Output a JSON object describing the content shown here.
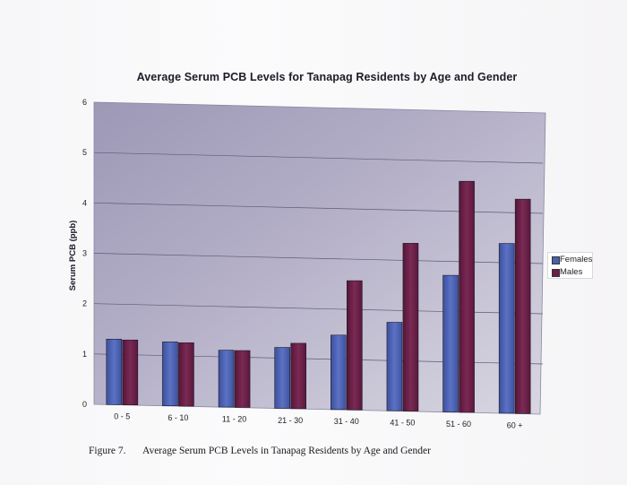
{
  "chart_data": {
    "type": "bar",
    "title": "Average Serum PCB Levels for Tanapag Residents by Age and Gender",
    "xlabel": "",
    "ylabel": "Serum PCB (ppb)",
    "ylim": [
      0,
      6
    ],
    "yticks": [
      "0",
      "1",
      "2",
      "3",
      "4",
      "5",
      "6"
    ],
    "grid": true,
    "legend_position": "right",
    "categories": [
      "0 - 5",
      "6 - 10",
      "11 - 20",
      "21 - 30",
      "31 - 40",
      "41 - 50",
      "51 - 60",
      "60 +"
    ],
    "series": [
      {
        "name": "Females",
        "color": "#4a5fae",
        "values": [
          1.3,
          1.27,
          1.13,
          1.21,
          1.48,
          1.76,
          2.72,
          3.38
        ]
      },
      {
        "name": "Males",
        "color": "#6b1f47",
        "values": [
          1.29,
          1.26,
          1.13,
          1.3,
          2.57,
          3.34,
          4.6,
          4.27
        ]
      }
    ]
  },
  "caption": {
    "figure_label": "Figure 7.",
    "text": "Average Serum PCB Levels in Tanapag Residents by Age and Gender"
  }
}
